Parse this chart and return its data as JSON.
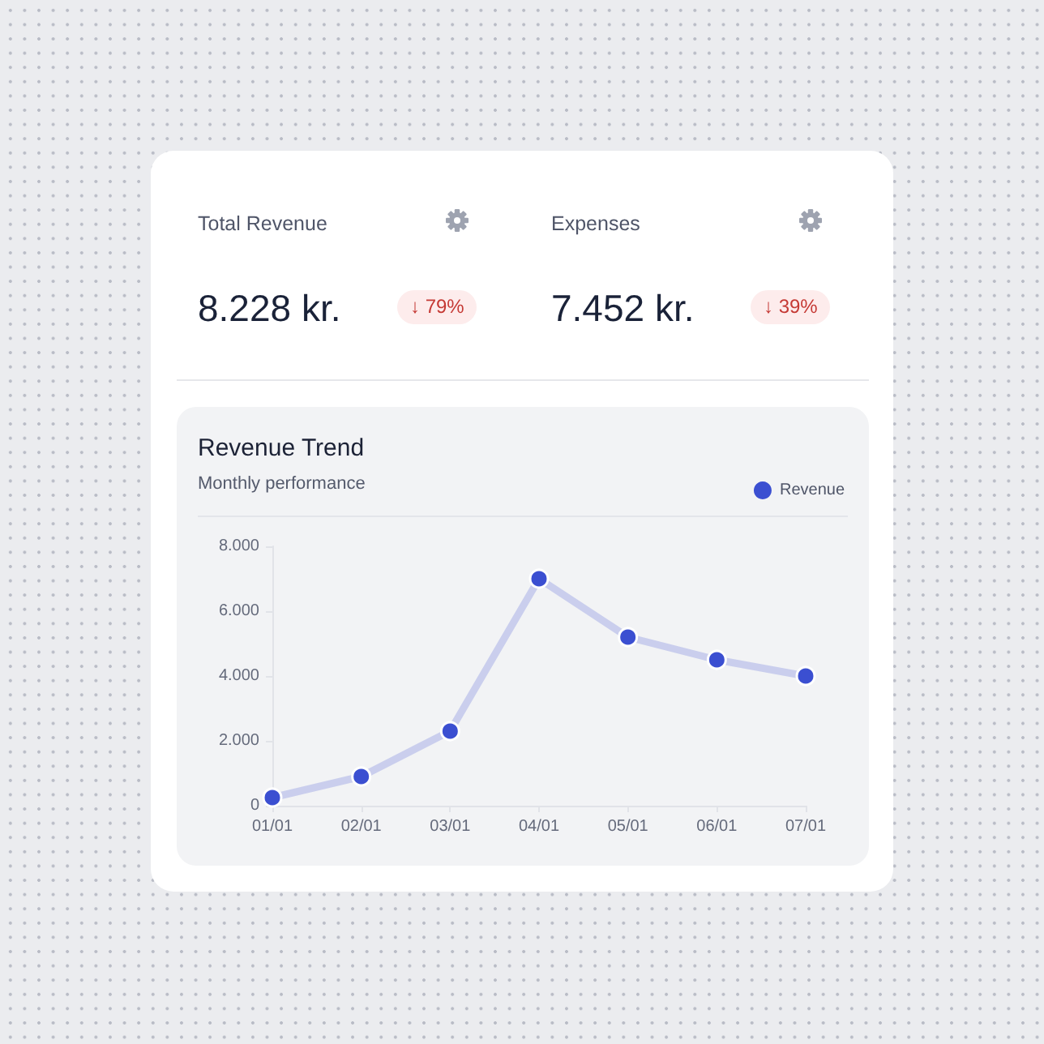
{
  "chart_data": [
    {
      "type": "other",
      "title": "Total Revenue",
      "annotations": [
        "8.228 kr.",
        "↓ 79%"
      ]
    },
    {
      "type": "other",
      "title": "Expenses",
      "annotations": [
        "7.452 kr.",
        "↓ 39%"
      ]
    },
    {
      "type": "line",
      "title": "Revenue Trend",
      "subtitle": "Monthly performance",
      "categories": [
        "01/01",
        "02/01",
        "03/01",
        "04/01",
        "05/01",
        "06/01",
        "07/01"
      ],
      "series": [
        {
          "name": "Revenue",
          "color": "#3b4fd1",
          "values": [
            250,
            900,
            2300,
            7000,
            5200,
            4500,
            4000
          ]
        }
      ],
      "ylim": [
        0,
        8000
      ],
      "yticks": [
        0,
        {
          "value": 2000,
          "label": "2.000"
        },
        {
          "value": 4000,
          "label": "4.000"
        },
        {
          "value": 6000,
          "label": "6.000"
        },
        {
          "value": 8000,
          "label": "8.000"
        }
      ],
      "legend": "top right",
      "marker": "circle",
      "line_style": "solid"
    }
  ]
}
